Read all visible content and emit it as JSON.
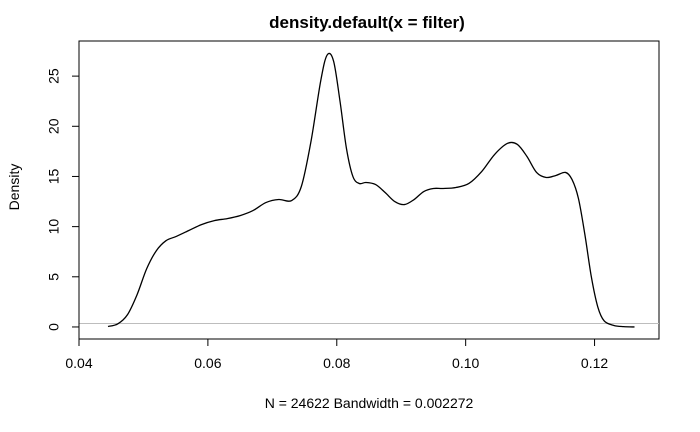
{
  "chart_data": {
    "type": "line",
    "title": "density.default(x = filter)",
    "xlabel": "N = 24622   Bandwidth = 0.002272",
    "ylabel": "Density",
    "xlim": [
      0.04,
      0.13
    ],
    "ylim": [
      -1.2,
      28.5
    ],
    "x_ticks": [
      0.04,
      0.06,
      0.08,
      0.1,
      0.12
    ],
    "x_tick_labels": [
      "0.04",
      "0.06",
      "0.08",
      "0.10",
      "0.12"
    ],
    "y_ticks": [
      0,
      5,
      10,
      15,
      20,
      25
    ],
    "y_tick_labels": [
      "0",
      "5",
      "10",
      "15",
      "20",
      "25"
    ],
    "grid": false,
    "zero_line": true,
    "series": [
      {
        "x": [
          0.0445,
          0.046,
          0.0475,
          0.049,
          0.0505,
          0.052,
          0.0535,
          0.055,
          0.057,
          0.059,
          0.061,
          0.063,
          0.065,
          0.067,
          0.069,
          0.071,
          0.073,
          0.0745,
          0.076,
          0.0775,
          0.0785,
          0.0795,
          0.0805,
          0.0815,
          0.0825,
          0.0835,
          0.0845,
          0.086,
          0.0875,
          0.089,
          0.0905,
          0.092,
          0.0935,
          0.095,
          0.0965,
          0.0985,
          0.1005,
          0.1025,
          0.1045,
          0.1065,
          0.108,
          0.1095,
          0.111,
          0.1125,
          0.114,
          0.1155,
          0.1165,
          0.1175,
          0.1185,
          0.1195,
          0.1205,
          0.1215,
          0.123,
          0.1245,
          0.1262
        ],
        "y": [
          0.05,
          0.3,
          1.2,
          3.2,
          5.8,
          7.6,
          8.6,
          9.0,
          9.6,
          10.2,
          10.6,
          10.8,
          11.1,
          11.6,
          12.4,
          12.7,
          12.6,
          14.0,
          18.5,
          24.5,
          27.1,
          26.5,
          22.5,
          17.8,
          15.0,
          14.3,
          14.4,
          14.2,
          13.4,
          12.5,
          12.2,
          12.7,
          13.5,
          13.8,
          13.8,
          13.9,
          14.3,
          15.5,
          17.2,
          18.3,
          18.2,
          17.0,
          15.4,
          14.9,
          15.1,
          15.4,
          14.7,
          12.8,
          9.2,
          5.0,
          2.0,
          0.6,
          0.15,
          0.03,
          0.0
        ]
      }
    ]
  }
}
